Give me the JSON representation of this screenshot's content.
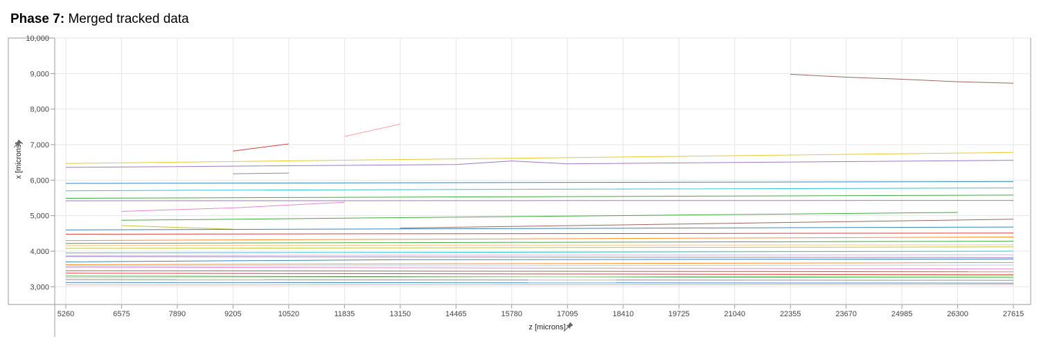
{
  "title": {
    "phase": "Phase 7:",
    "text": "Merged tracked data"
  },
  "chart_data": {
    "type": "line",
    "xlabel": "z [microns]",
    "ylabel": "x [microns]",
    "x_ticks": [
      5260,
      6575,
      7890,
      9205,
      10520,
      11835,
      13150,
      14465,
      15780,
      17095,
      18410,
      19725,
      21040,
      22355,
      23670,
      24985,
      26300,
      27615
    ],
    "y_ticks": [
      "3,000",
      "4,000",
      "5,000",
      "6,000",
      "7,000",
      "8,000",
      "9,000",
      "10,000"
    ],
    "xlim": [
      5260,
      27615
    ],
    "ylim": [
      2500,
      10000
    ],
    "grid": true,
    "legend": "none",
    "series": [
      {
        "color": "#8c564b",
        "x": [
          22355,
          23670,
          24985,
          26300,
          27615
        ],
        "y": [
          8980,
          8900,
          8840,
          8770,
          8730
        ]
      },
      {
        "color": "#d62728",
        "x": [
          9205,
          10520
        ],
        "y": [
          6820,
          7020
        ]
      },
      {
        "color": "#ff9896",
        "x": [
          11835,
          13150
        ],
        "y": [
          7230,
          7580
        ]
      },
      {
        "color": "#e3c21b",
        "x": [
          5260,
          27615
        ],
        "y": [
          6470,
          6780
        ]
      },
      {
        "color": "#9467bd",
        "x": [
          5260,
          14465,
          15780,
          17095,
          27615
        ],
        "y": [
          6360,
          6440,
          6540,
          6460,
          6560
        ]
      },
      {
        "color": "#7f7f7f",
        "x": [
          9205,
          10520
        ],
        "y": [
          6180,
          6200
        ]
      },
      {
        "color": "#17becf",
        "x": [
          5260,
          9205,
          27615
        ],
        "y": [
          5700,
          5720,
          5780
        ]
      },
      {
        "color": "#1f77b4",
        "x": [
          5260,
          27615
        ],
        "y": [
          5910,
          5960
        ]
      },
      {
        "color": "#2ca02c",
        "x": [
          5260,
          27615
        ],
        "y": [
          5490,
          5580
        ]
      },
      {
        "color": "#9467bd",
        "x": [
          5260,
          27615
        ],
        "y": [
          5420,
          5430
        ]
      },
      {
        "color": "#e377c2",
        "x": [
          6575,
          7890,
          9205,
          11835
        ],
        "y": [
          5120,
          5170,
          5220,
          5380
        ]
      },
      {
        "color": "#2ca02c",
        "x": [
          6575,
          26300
        ],
        "y": [
          4870,
          5090
        ]
      },
      {
        "color": "#bcbd22",
        "x": [
          6575,
          9205
        ],
        "y": [
          4720,
          4620
        ]
      },
      {
        "color": "#8c564b",
        "x": [
          13150,
          27615
        ],
        "y": [
          4650,
          4900
        ]
      },
      {
        "color": "#1f77b4",
        "x": [
          5260,
          27615
        ],
        "y": [
          4600,
          4680
        ]
      },
      {
        "color": "#d62728",
        "x": [
          5260,
          27615
        ],
        "y": [
          4480,
          4510
        ]
      },
      {
        "color": "#ff7f0e",
        "x": [
          5260,
          27615
        ],
        "y": [
          4300,
          4400
        ]
      },
      {
        "color": "#2ca02c",
        "x": [
          5260,
          27615
        ],
        "y": [
          4220,
          4280
        ]
      },
      {
        "color": "#bcbd22",
        "x": [
          5260,
          27615
        ],
        "y": [
          4080,
          4120
        ]
      },
      {
        "color": "#17becf",
        "x": [
          5260,
          27615
        ],
        "y": [
          3950,
          4000
        ]
      },
      {
        "color": "#9467bd",
        "x": [
          5260,
          27615
        ],
        "y": [
          3850,
          3820
        ]
      },
      {
        "color": "#1f77b4",
        "x": [
          5260,
          13150,
          27615
        ],
        "y": [
          3700,
          3760,
          3780
        ]
      },
      {
        "color": "#ff7f0e",
        "x": [
          5260,
          27615
        ],
        "y": [
          3620,
          3680
        ]
      },
      {
        "color": "#e377c2",
        "x": [
          5260,
          27615
        ],
        "y": [
          3550,
          3500
        ]
      },
      {
        "color": "#8c564b",
        "x": [
          5260,
          27615
        ],
        "y": [
          3450,
          3420
        ]
      },
      {
        "color": "#d62728",
        "x": [
          5260,
          27615
        ],
        "y": [
          3380,
          3340
        ]
      },
      {
        "color": "#2ca02c",
        "x": [
          5260,
          27615
        ],
        "y": [
          3300,
          3260
        ]
      },
      {
        "color": "#7f7f7f",
        "x": [
          5260,
          27615
        ],
        "y": [
          3200,
          3180
        ]
      },
      {
        "color": "#1f77b4",
        "x": [
          5260,
          27615
        ],
        "y": [
          3120,
          3100
        ]
      },
      {
        "color": "#ff9896",
        "x": [
          5260,
          27615
        ],
        "y": [
          3050,
          3060
        ]
      },
      {
        "color": "#98df8a",
        "x": [
          5260,
          27615
        ],
        "y": [
          3250,
          3310
        ]
      },
      {
        "color": "#aec7e8",
        "x": [
          5260,
          27615
        ],
        "y": [
          3580,
          3610
        ]
      },
      {
        "color": "#c5b0d5",
        "x": [
          5260,
          27615
        ],
        "y": [
          3880,
          3900
        ]
      },
      {
        "color": "#ffbb78",
        "x": [
          5260,
          27615
        ],
        "y": [
          4160,
          4180
        ]
      }
    ]
  }
}
